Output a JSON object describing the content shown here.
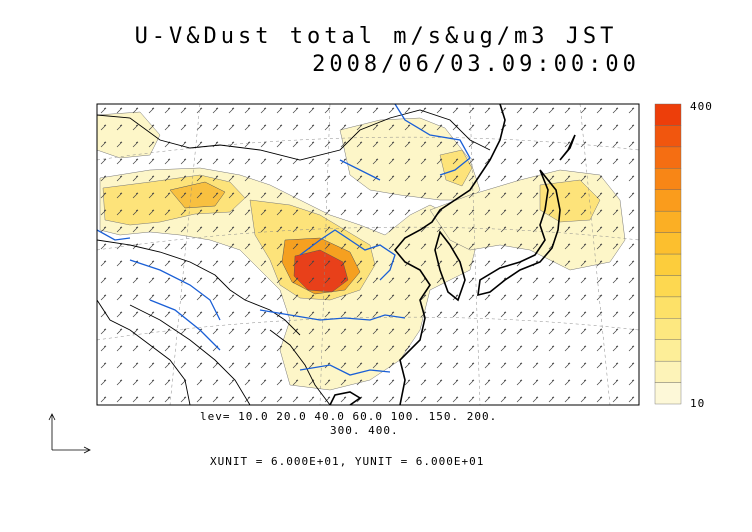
{
  "title": {
    "line1": "U-V&Dust total m/s&ug/m3 JST",
    "line2": "2008/06/03.09:00:00"
  },
  "colorbar": {
    "top_label": "400",
    "bottom_label": "10",
    "colors": [
      "#fdf8d8",
      "#fdf3b8",
      "#fdee98",
      "#fde880",
      "#fde168",
      "#fdd850",
      "#fccd3c",
      "#fcbf2e",
      "#fbaf24",
      "#fa9c1c",
      "#f88616",
      "#f56e12",
      "#f1560e",
      "#ed3e0a"
    ]
  },
  "levels": {
    "line1": "lev= 10.0 20.0 40.0 60.0 100. 150. 200.",
    "line2": "300. 400."
  },
  "units_text": "XUNIT = 6.000E+01, YUNIT = 6.000E+01",
  "colors": {
    "coastline": "#000000",
    "rivers": "#1a5fd6",
    "dust_light": "#fdf6c8",
    "dust_mid": "#fde37a",
    "dust_high": "#f5a020",
    "dust_peak": "#e8401a"
  }
}
